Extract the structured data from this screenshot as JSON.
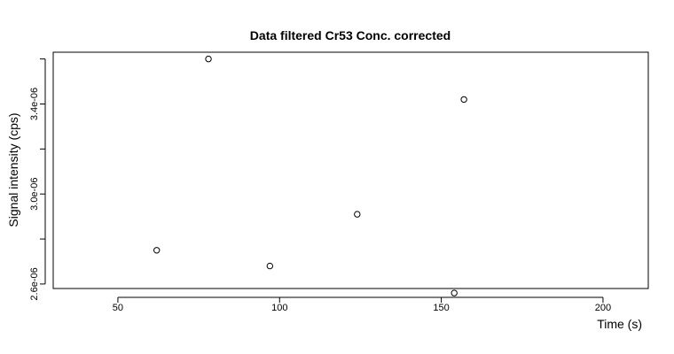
{
  "chart_data": {
    "type": "scatter",
    "title": "Data filtered Cr53 Conc. corrected",
    "xlabel": "Time (s)",
    "ylabel": "Signal intensity (cps)",
    "xlim": [
      30,
      214
    ],
    "ylim": [
      2.58e-06,
      3.63e-06
    ],
    "x_ticks": [
      {
        "value": 50,
        "label": "50"
      },
      {
        "value": 100,
        "label": "100"
      },
      {
        "value": 150,
        "label": "150"
      },
      {
        "value": 200,
        "label": "200"
      }
    ],
    "y_ticks": [
      {
        "value": 2.6e-06,
        "label": "2.6e-06"
      },
      {
        "value": 2.8e-06,
        "label": ""
      },
      {
        "value": 3e-06,
        "label": "3.0e-06"
      },
      {
        "value": 3.2e-06,
        "label": ""
      },
      {
        "value": 3.4e-06,
        "label": "3.4e-06"
      },
      {
        "value": 3.6e-06,
        "label": ""
      }
    ],
    "points": [
      {
        "x": 62,
        "y": 2.75e-06
      },
      {
        "x": 78,
        "y": 3.6e-06
      },
      {
        "x": 97,
        "y": 2.68e-06
      },
      {
        "x": 124,
        "y": 2.91e-06
      },
      {
        "x": 154,
        "y": 2.56e-06
      },
      {
        "x": 157,
        "y": 3.42e-06
      }
    ],
    "marker": "open-circle",
    "grid": false,
    "colors": {
      "marker": "#000000",
      "axis": "#000000",
      "background": "#ffffff"
    }
  }
}
